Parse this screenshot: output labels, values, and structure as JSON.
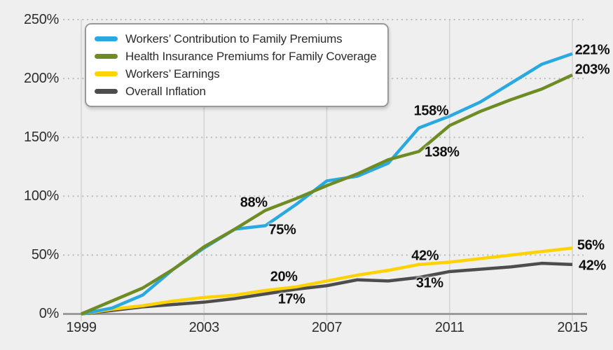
{
  "page": {
    "background": "#EFEFEF",
    "text_color": "#2E2E2E"
  },
  "chart_data": {
    "type": "line",
    "title": "",
    "xlabel": "",
    "ylabel": "",
    "x": [
      1999,
      2000,
      2001,
      2002,
      2003,
      2004,
      2005,
      2006,
      2007,
      2008,
      2009,
      2010,
      2011,
      2012,
      2013,
      2014,
      2015
    ],
    "x_tick_years": [
      1999,
      2003,
      2007,
      2011,
      2015
    ],
    "x_tick_labels": [
      "1999",
      "2003",
      "2007",
      "2011",
      "2015"
    ],
    "y_tick_values": [
      0,
      50,
      100,
      150,
      200,
      250
    ],
    "y_tick_labels": [
      "0%",
      "50%",
      "100%",
      "150%",
      "200%",
      "250%"
    ],
    "ylim": [
      0,
      250
    ],
    "grid": {
      "horizontal": "dotted",
      "vertical": "solid",
      "baseline": "solid"
    },
    "legend_position": "top-left",
    "series": [
      {
        "name": "Workers’ Contribution to Family Premiums",
        "color": "#29A9E1",
        "values": [
          0,
          5,
          16,
          38,
          56,
          72,
          75,
          93,
          113,
          117,
          128,
          158,
          168,
          180,
          196,
          212,
          221
        ]
      },
      {
        "name": "Health Insurance Premiums for Family Coverage",
        "color": "#6E8C23",
        "values": [
          0,
          11,
          22,
          38,
          57,
          72,
          88,
          98,
          109,
          119,
          131,
          138,
          160,
          172,
          182,
          191,
          203
        ]
      },
      {
        "name": "Workers’ Earnings",
        "color": "#FFD203",
        "values": [
          0,
          4,
          7,
          11,
          14,
          16,
          20,
          23,
          28,
          33,
          37,
          42,
          44,
          47,
          50,
          53,
          56
        ]
      },
      {
        "name": "Overall Inflation",
        "color": "#4D4D4D",
        "values": [
          0,
          3,
          6,
          8,
          10,
          13,
          17,
          21,
          24,
          29,
          28,
          31,
          36,
          38,
          40,
          43,
          42
        ]
      }
    ],
    "annotations": [
      {
        "text": "88%",
        "year": 2004.62,
        "pct": 94
      },
      {
        "text": "75%",
        "year": 2005.55,
        "pct": 71
      },
      {
        "text": "20%",
        "year": 2005.6,
        "pct": 31
      },
      {
        "text": "17%",
        "year": 2005.85,
        "pct": 12
      },
      {
        "text": "158%",
        "year": 2010.4,
        "pct": 172
      },
      {
        "text": "138%",
        "year": 2010.75,
        "pct": 137
      },
      {
        "text": "42%",
        "year": 2010.2,
        "pct": 49
      },
      {
        "text": "31%",
        "year": 2010.35,
        "pct": 26
      },
      {
        "text": "221%",
        "year": 2015.65,
        "pct": 224
      },
      {
        "text": "203%",
        "year": 2015.65,
        "pct": 207
      },
      {
        "text": "56%",
        "year": 2015.6,
        "pct": 58
      },
      {
        "text": "42%",
        "year": 2015.65,
        "pct": 41
      }
    ]
  }
}
